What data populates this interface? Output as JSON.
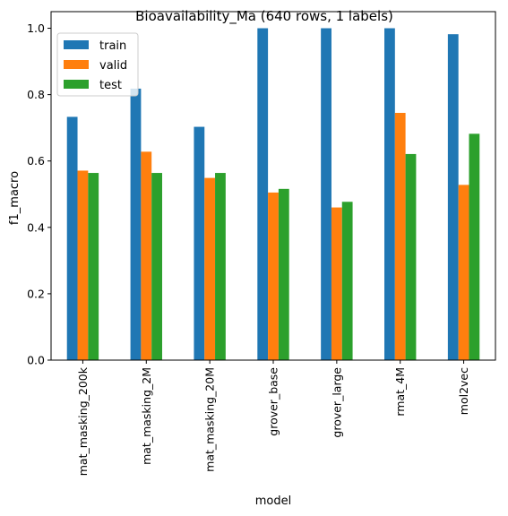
{
  "chart_data": {
    "type": "bar",
    "title": "Bioavailability_Ma (640 rows, 1 labels)",
    "xlabel": "model",
    "ylabel": "f1_macro",
    "categories": [
      "mat_masking_200k",
      "mat_masking_2M",
      "mat_masking_20M",
      "grover_base",
      "grover_large",
      "rmat_4M",
      "mol2vec"
    ],
    "series": [
      {
        "name": "train",
        "color": "#1f77b4",
        "values": [
          0.733,
          0.818,
          0.703,
          1.0,
          1.0,
          1.0,
          0.982
        ]
      },
      {
        "name": "valid",
        "color": "#ff7f0e",
        "values": [
          0.571,
          0.628,
          0.549,
          0.505,
          0.46,
          0.745,
          0.528
        ]
      },
      {
        "name": "test",
        "color": "#2ca02c",
        "values": [
          0.564,
          0.564,
          0.564,
          0.516,
          0.477,
          0.621,
          0.682
        ]
      }
    ],
    "ylim": [
      0.0,
      1.05
    ],
    "yticks": [
      "0.0",
      "0.2",
      "0.4",
      "0.6",
      "0.8",
      "1.0"
    ],
    "grid": false,
    "legend_position": "top-left"
  }
}
